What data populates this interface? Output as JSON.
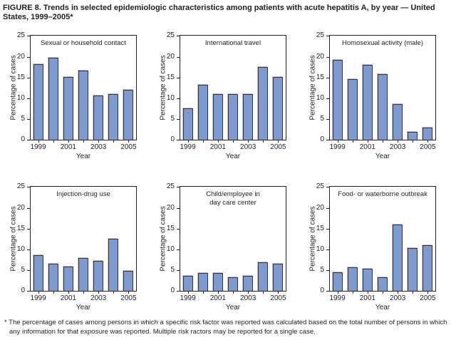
{
  "figure_title": "FIGURE 8. Trends in selected epidemiologic characteristics among patients with acute hepatitis A, by year — United States, 1999–2005*",
  "footnote": "* The percentage of cases among persons in which a specific risk factor was reported was calculated based on the total number of persons in which any information for that exposure was reported. Multiple risk ractors may be reported for a single case.",
  "colors": {
    "bar_fill": "#7d9bd1",
    "bar_border": "#33343f",
    "axis": "#231f20"
  },
  "chart_data": [
    {
      "type": "bar",
      "title": "Sexual or household contact",
      "x": [
        1999,
        2000,
        2001,
        2002,
        2003,
        2004,
        2005
      ],
      "values": [
        18.3,
        19.8,
        15.2,
        16.7,
        10.7,
        11.0,
        12.0
      ],
      "xlabel": "Year",
      "ylabel": "Percentage of cases",
      "ylim": [
        0,
        25
      ],
      "yticks": [
        0,
        5,
        10,
        15,
        20,
        25
      ],
      "xticklabels": [
        "1999",
        "2001",
        "2003",
        "2005"
      ],
      "grid": false
    },
    {
      "type": "bar",
      "title": "International travel",
      "x": [
        1999,
        2000,
        2001,
        2002,
        2003,
        2004,
        2005
      ],
      "values": [
        7.6,
        13.2,
        11.0,
        11.1,
        11.1,
        17.5,
        15.1
      ],
      "xlabel": "Year",
      "ylabel": "Percentage of cases",
      "ylim": [
        0,
        25
      ],
      "yticks": [
        0,
        5,
        10,
        15,
        20,
        25
      ],
      "xticklabels": [
        "1999",
        "2001",
        "2003",
        "2005"
      ],
      "grid": false
    },
    {
      "type": "bar",
      "title": "Homosexual activity (male)",
      "x": [
        1999,
        2000,
        2001,
        2002,
        2003,
        2004,
        2005
      ],
      "values": [
        19.3,
        14.7,
        18.1,
        15.8,
        8.7,
        2.0,
        2.9
      ],
      "xlabel": "Year",
      "ylabel": "Percentage of cases",
      "ylim": [
        0,
        25
      ],
      "yticks": [
        0,
        5,
        10,
        15,
        20,
        25
      ],
      "xticklabels": [
        "1999",
        "2001",
        "2003",
        "2005"
      ],
      "grid": false
    },
    {
      "type": "bar",
      "title": "Injection-drug use",
      "x": [
        1999,
        2000,
        2001,
        2002,
        2003,
        2004,
        2005
      ],
      "values": [
        8.6,
        6.6,
        5.9,
        8.0,
        7.3,
        12.6,
        4.8
      ],
      "xlabel": "Year",
      "ylabel": "Percentage of cases",
      "ylim": [
        0,
        25
      ],
      "yticks": [
        0,
        5,
        10,
        15,
        20,
        25
      ],
      "xticklabels": [
        "1999",
        "2001",
        "2003",
        "2005"
      ],
      "grid": false
    },
    {
      "type": "bar",
      "title": "Child/employee in\nday care center",
      "x": [
        1999,
        2000,
        2001,
        2002,
        2003,
        2004,
        2005
      ],
      "values": [
        3.6,
        4.4,
        4.4,
        3.3,
        3.7,
        6.9,
        6.5
      ],
      "xlabel": "Year",
      "ylabel": "Percentage of cases",
      "ylim": [
        0,
        25
      ],
      "yticks": [
        0,
        5,
        10,
        15,
        20,
        25
      ],
      "xticklabels": [
        "1999",
        "2001",
        "2003",
        "2005"
      ],
      "grid": false
    },
    {
      "type": "bar",
      "title": "Food- or waterborne outbreak",
      "x": [
        1999,
        2000,
        2001,
        2002,
        2003,
        2004,
        2005
      ],
      "values": [
        4.5,
        5.7,
        5.4,
        3.4,
        16.0,
        10.3,
        11.0
      ],
      "xlabel": "Year",
      "ylabel": "Percentage of cases",
      "ylim": [
        0,
        25
      ],
      "yticks": [
        0,
        5,
        10,
        15,
        20,
        25
      ],
      "xticklabels": [
        "1999",
        "2001",
        "2003",
        "2005"
      ],
      "grid": false
    }
  ]
}
